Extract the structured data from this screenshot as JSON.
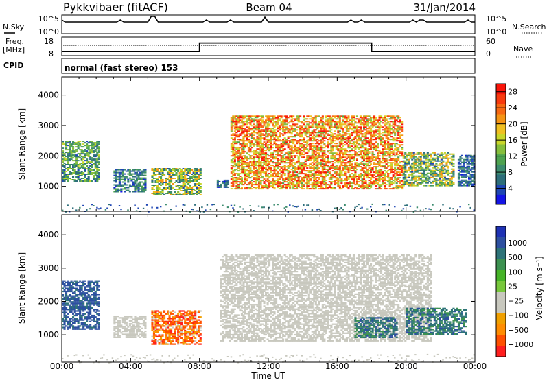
{
  "header": {
    "site": "Pykkvibaer (fitACF)",
    "beam": "Beam 04",
    "date": "31/Jan/2014"
  },
  "top_panels": {
    "nsky_label": "N.Sky",
    "nsky_ticks": [
      "10^5",
      "10^0"
    ],
    "nsearch_label": "N.Search",
    "nsearch_ticks": [
      "10^5",
      "10^0"
    ],
    "freq_label": "Freq.",
    "freq_unit": "[MHz]",
    "freq_ticks": [
      "18",
      "8"
    ],
    "nave_label": "Nave",
    "nave_ticks": [
      "60",
      "0"
    ],
    "cpid_label": "CPID",
    "cpid_text": "normal (fast stereo) 153",
    "freq_steps": [
      {
        "from": 0,
        "to": 8.0,
        "value": 0.22
      },
      {
        "from": 8.0,
        "to": 18.0,
        "value": 0.68
      },
      {
        "from": 18.0,
        "to": 24.0,
        "value": 0.22
      }
    ]
  },
  "colors": {
    "power_scale": [
      "#1414e6",
      "#1e46b4",
      "#2d6e7a",
      "#3c8c6e",
      "#4ea350",
      "#86bf3c",
      "#c9d629",
      "#f0c020",
      "#f59414",
      "#f76812",
      "#f83a0e",
      "#fa1409"
    ],
    "velocity_scale": [
      "#1e32b4",
      "#2d50a0",
      "#2d7378",
      "#3c9150",
      "#46b428",
      "#78c83c",
      "#c8c8be",
      "#c8c8be",
      "#f0a000",
      "#ff8c00",
      "#ff5000",
      "#ff1e1e"
    ],
    "ground_scatter": "#c8c8be"
  },
  "chart_data": [
    {
      "type": "heatmap",
      "id": "power",
      "ylabel": "Slant Range [km]",
      "ylim": [
        180,
        4600
      ],
      "yticks": [
        1000,
        2000,
        3000,
        4000
      ],
      "xlim": [
        0,
        24
      ],
      "xticks": [
        "00:00",
        "04:00",
        "08:00",
        "12:00",
        "16:00",
        "20:00",
        "00:00"
      ],
      "colorbar_label": "Power [dB]",
      "colorbar_ticks": [
        4,
        8,
        12,
        16,
        20,
        24,
        28
      ],
      "colorbar_range": [
        0,
        30
      ],
      "regions": [
        {
          "t": [
            0.0,
            2.2
          ],
          "r": [
            1150,
            2500
          ],
          "min": 4,
          "max": 16
        },
        {
          "t": [
            3.0,
            4.8
          ],
          "r": [
            800,
            1550
          ],
          "min": 2,
          "max": 12
        },
        {
          "t": [
            5.2,
            8.0
          ],
          "r": [
            700,
            1600
          ],
          "min": 4,
          "max": 22
        },
        {
          "t": [
            9.0,
            9.6
          ],
          "r": [
            950,
            1200
          ],
          "min": 2,
          "max": 10
        },
        {
          "t": [
            9.8,
            19.8
          ],
          "r": [
            900,
            3300
          ],
          "min": 12,
          "max": 30
        },
        {
          "t": [
            19.8,
            22.8
          ],
          "r": [
            1000,
            2100
          ],
          "min": 4,
          "max": 22
        },
        {
          "t": [
            23.0,
            24.0
          ],
          "r": [
            1000,
            2000
          ],
          "min": 2,
          "max": 10
        }
      ]
    },
    {
      "type": "heatmap",
      "id": "velocity",
      "ylabel": "Slant Range [km]",
      "ylim": [
        180,
        4600
      ],
      "yticks": [
        1000,
        2000,
        3000,
        4000
      ],
      "xlim": [
        0,
        24
      ],
      "xticks": [
        "00:00",
        "04:00",
        "08:00",
        "12:00",
        "16:00",
        "20:00",
        "00:00"
      ],
      "xlabel": "Time UT",
      "colorbar_label": "Velocity [m s⁻¹]",
      "colorbar_ticks": [
        "1000",
        "500",
        "100",
        "25",
        "−25",
        "−100",
        "−500",
        "−1000"
      ],
      "regions": [
        {
          "t": [
            0.0,
            2.2
          ],
          "r": [
            1150,
            2600
          ],
          "min": 300,
          "max": 1000
        },
        {
          "t": [
            3.0,
            4.8
          ],
          "r": [
            900,
            1550
          ],
          "min": -20,
          "max": 20
        },
        {
          "t": [
            5.2,
            8.0
          ],
          "r": [
            700,
            1700
          ],
          "min": -600,
          "max": 20
        },
        {
          "t": [
            9.2,
            21.5
          ],
          "r": [
            800,
            3400
          ],
          "min": -20,
          "max": 20
        },
        {
          "t": [
            17.0,
            19.5
          ],
          "r": [
            900,
            1500
          ],
          "min": 100,
          "max": 600
        },
        {
          "t": [
            20.0,
            23.5
          ],
          "r": [
            1000,
            1800
          ],
          "min": 100,
          "max": 600
        }
      ]
    }
  ]
}
